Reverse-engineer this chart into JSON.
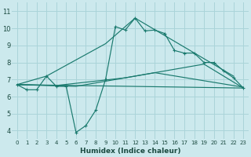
{
  "background_color": "#cce9ed",
  "grid_color": "#aad4d9",
  "line_color": "#1a7a6e",
  "xlabel": "Humidex (Indice chaleur)",
  "xlim": [
    -0.5,
    23.5
  ],
  "ylim": [
    3.5,
    11.5
  ],
  "xticks": [
    0,
    1,
    2,
    3,
    4,
    5,
    6,
    7,
    8,
    9,
    10,
    11,
    12,
    13,
    14,
    15,
    16,
    17,
    18,
    19,
    20,
    21,
    22,
    23
  ],
  "yticks": [
    4,
    5,
    6,
    7,
    8,
    9,
    10,
    11
  ],
  "series0_x": [
    0,
    1,
    2,
    3,
    4,
    5,
    6,
    7,
    8,
    9,
    10,
    11,
    12,
    13,
    14,
    15,
    16,
    17,
    18,
    19,
    20,
    21,
    22,
    23
  ],
  "series0_y": [
    6.7,
    6.4,
    6.4,
    7.2,
    6.6,
    6.6,
    3.9,
    4.3,
    5.2,
    7.0,
    10.1,
    9.9,
    10.6,
    9.85,
    9.9,
    9.7,
    8.7,
    8.55,
    8.55,
    8.0,
    8.0,
    7.5,
    7.1,
    6.5
  ],
  "series1_x": [
    0,
    3,
    9,
    12,
    22
  ],
  "series1_y": [
    6.7,
    7.2,
    9.1,
    10.6,
    7.2
  ],
  "series2_x": [
    0,
    23
  ],
  "series2_y": [
    6.7,
    6.5
  ],
  "series3_x": [
    0,
    4,
    11,
    19,
    23
  ],
  "series3_y": [
    6.7,
    6.65,
    7.1,
    7.9,
    6.5
  ],
  "series4_x": [
    0,
    6,
    14,
    23
  ],
  "series4_y": [
    6.7,
    6.6,
    7.4,
    6.55
  ]
}
